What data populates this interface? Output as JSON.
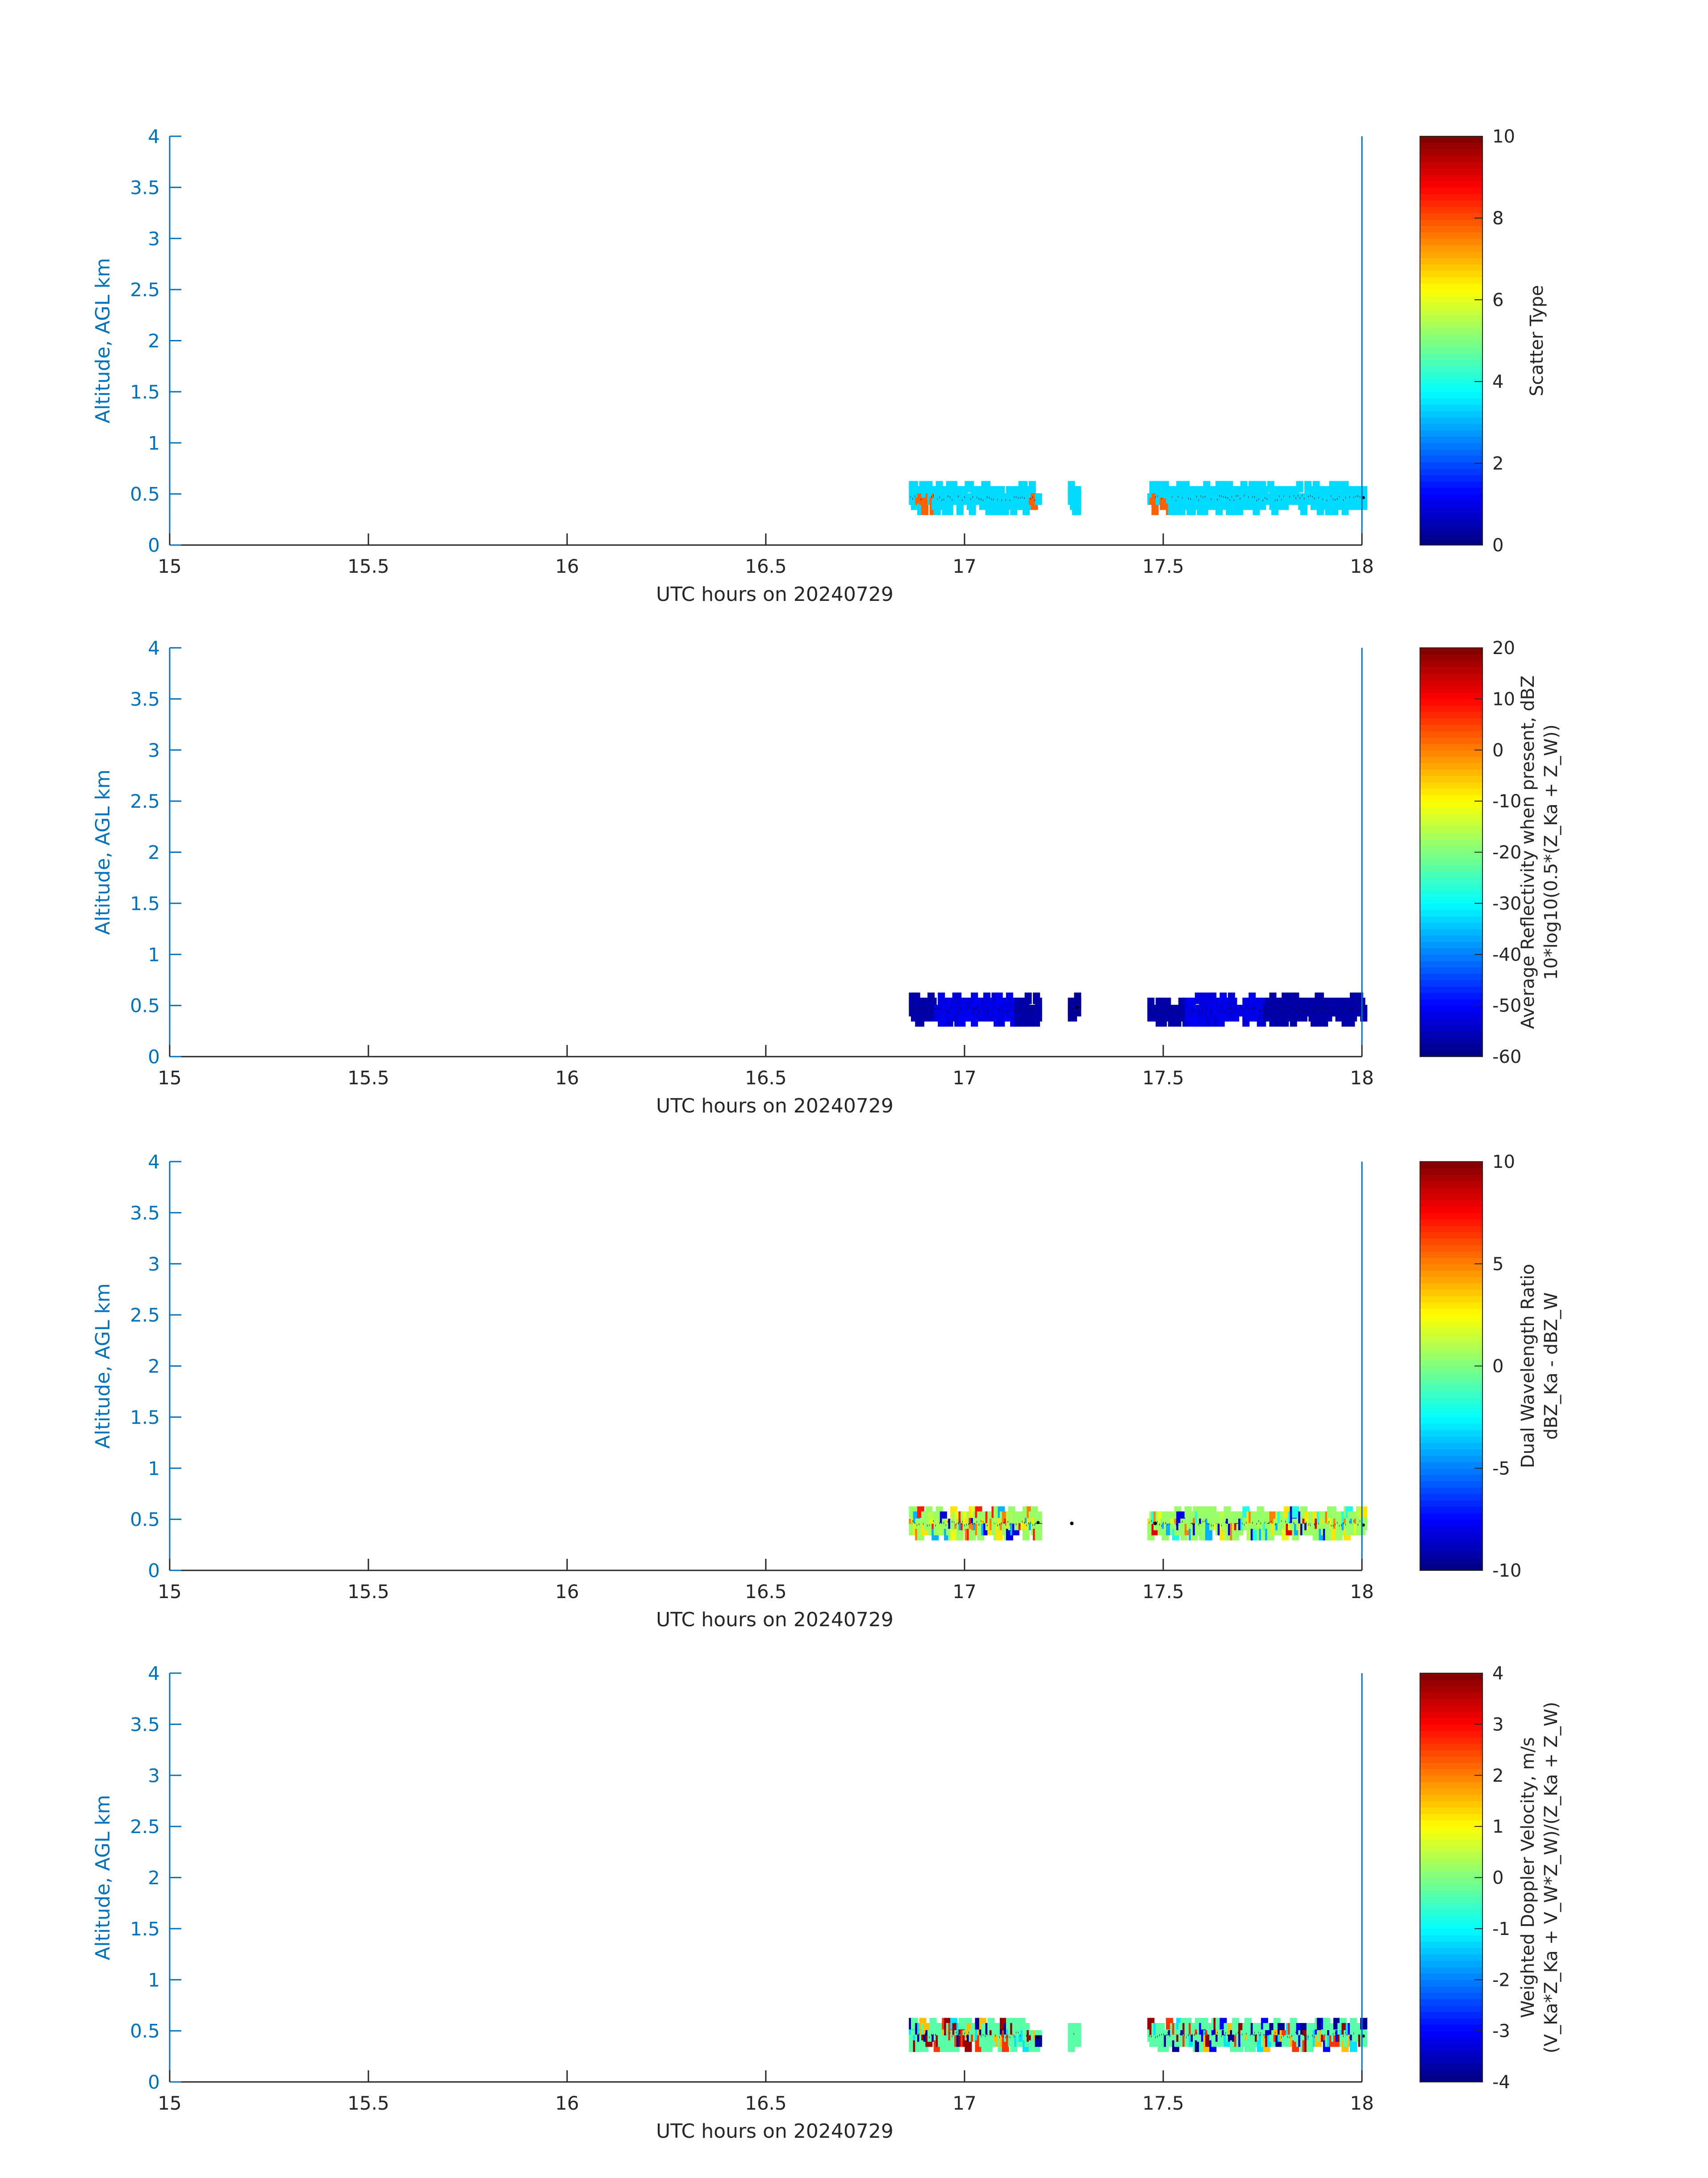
{
  "figure": {
    "date_label": "UTC hours on 20240729",
    "colors": {
      "y_axis": "#0072BD",
      "x_axis": "#262626",
      "marker": "#000000"
    },
    "colormap": "jet"
  },
  "chart_data": [
    {
      "type": "heatmap",
      "x_range": [
        15,
        18
      ],
      "y_range": [
        0,
        4
      ],
      "xlabel": "UTC hours on 20240729",
      "ylabel": "Altitude, AGL km",
      "x_ticks": [
        "15",
        "15.5",
        "16",
        "16.5",
        "17",
        "17.5",
        "18"
      ],
      "y_ticks": [
        "0",
        "0.5",
        "1",
        "1.5",
        "2",
        "2.5",
        "3",
        "3.5",
        "4"
      ],
      "colorbar": {
        "range": [
          0,
          10
        ],
        "ticks": [
          "0",
          "2",
          "4",
          "6",
          "8",
          "10"
        ],
        "label_line1": "Scatter Type",
        "label_line2": ""
      },
      "segments": [
        {
          "x": [
            16.86,
            17.18
          ],
          "value": 3.4,
          "accent_value": 7.8,
          "accent_spans": [
            [
              16.87,
              16.92
            ],
            [
              17.16,
              17.18
            ]
          ]
        },
        {
          "x": [
            17.26,
            17.28
          ],
          "value": 3.4
        },
        {
          "x": [
            17.46,
            18.0
          ],
          "value": 3.4,
          "accent_value": 7.8,
          "accent_spans": [
            [
              17.46,
              17.48
            ],
            [
              17.49,
              17.51
            ]
          ]
        }
      ],
      "scatter_value_main": 3.4
    },
    {
      "type": "heatmap",
      "x_range": [
        15,
        18
      ],
      "y_range": [
        0,
        4
      ],
      "xlabel": "UTC hours on 20240729",
      "ylabel": "Altitude, AGL km",
      "x_ticks": [
        "15",
        "15.5",
        "16",
        "16.5",
        "17",
        "17.5",
        "18"
      ],
      "y_ticks": [
        "0",
        "0.5",
        "1",
        "1.5",
        "2",
        "2.5",
        "3",
        "3.5",
        "4"
      ],
      "colorbar": {
        "range": [
          -60,
          20
        ],
        "ticks": [
          "-60",
          "-50",
          "-40",
          "-30",
          "-20",
          "-10",
          "0",
          "10",
          "20"
        ],
        "label_line1": "Average Reflectivity when present, dBZ",
        "label_line2": "10*log10(0.5*(Z_Ka + Z_W))"
      },
      "segments": [
        {
          "x": [
            16.86,
            17.18
          ],
          "value": -57,
          "accent_value": -52,
          "accent_spans": [
            [
              16.92,
              17.12
            ]
          ]
        },
        {
          "x": [
            17.26,
            17.28
          ],
          "value": -58
        },
        {
          "x": [
            17.46,
            18.0
          ],
          "value": -57,
          "accent_value": -52,
          "accent_spans": [
            [
              17.55,
              17.75
            ]
          ]
        }
      ]
    },
    {
      "type": "heatmap",
      "x_range": [
        15,
        18
      ],
      "y_range": [
        0,
        4
      ],
      "xlabel": "UTC hours on 20240729",
      "ylabel": "Altitude, AGL km",
      "x_ticks": [
        "15",
        "15.5",
        "16",
        "16.5",
        "17",
        "17.5",
        "18"
      ],
      "y_ticks": [
        "0",
        "0.5",
        "1",
        "1.5",
        "2",
        "2.5",
        "3",
        "3.5",
        "4"
      ],
      "colorbar": {
        "range": [
          -10,
          10
        ],
        "ticks": [
          "-10",
          "-5",
          "0",
          "5",
          "10"
        ],
        "label_line1": "Dual Wavelength Ratio",
        "label_line2": "dBZ_Ka - dBZ_W"
      },
      "segments": [
        {
          "x": [
            16.86,
            17.18
          ],
          "value": 0.5,
          "mixed": [
            -4,
            2,
            5,
            7,
            -8,
            1,
            3
          ]
        },
        {
          "x": [
            17.46,
            18.0
          ],
          "value": 0.5,
          "mixed": [
            -4,
            2,
            5,
            8,
            -8,
            1,
            3,
            -2
          ]
        }
      ]
    },
    {
      "type": "heatmap",
      "x_range": [
        15,
        18
      ],
      "y_range": [
        0,
        4
      ],
      "xlabel": "UTC hours on 20240729",
      "ylabel": "Altitude, AGL km",
      "x_ticks": [
        "15",
        "15.5",
        "16",
        "16.5",
        "17",
        "17.5",
        "18"
      ],
      "y_ticks": [
        "0",
        "0.5",
        "1",
        "1.5",
        "2",
        "2.5",
        "3",
        "3.5",
        "4"
      ],
      "colorbar": {
        "range": [
          -4,
          4
        ],
        "ticks": [
          "-4",
          "-3",
          "-2",
          "-1",
          "0",
          "1",
          "2",
          "3",
          "4"
        ],
        "label_line1": "Weighted Doppler Velocity, m/s",
        "label_line2": "(V_Ka*Z_Ka + V_W*Z_W)/(Z_Ka + Z_W)"
      },
      "segments": [
        {
          "x": [
            16.86,
            17.18
          ],
          "value": -0.3,
          "mixed": [
            -3.8,
            3.8,
            1.5,
            -1.2,
            2.6
          ]
        },
        {
          "x": [
            17.26,
            17.28
          ],
          "value": -0.3
        },
        {
          "x": [
            17.46,
            18.0
          ],
          "value": -0.3,
          "mixed": [
            -3.8,
            3.8,
            1.5,
            -1.2,
            2.6,
            -3
          ]
        }
      ]
    }
  ]
}
